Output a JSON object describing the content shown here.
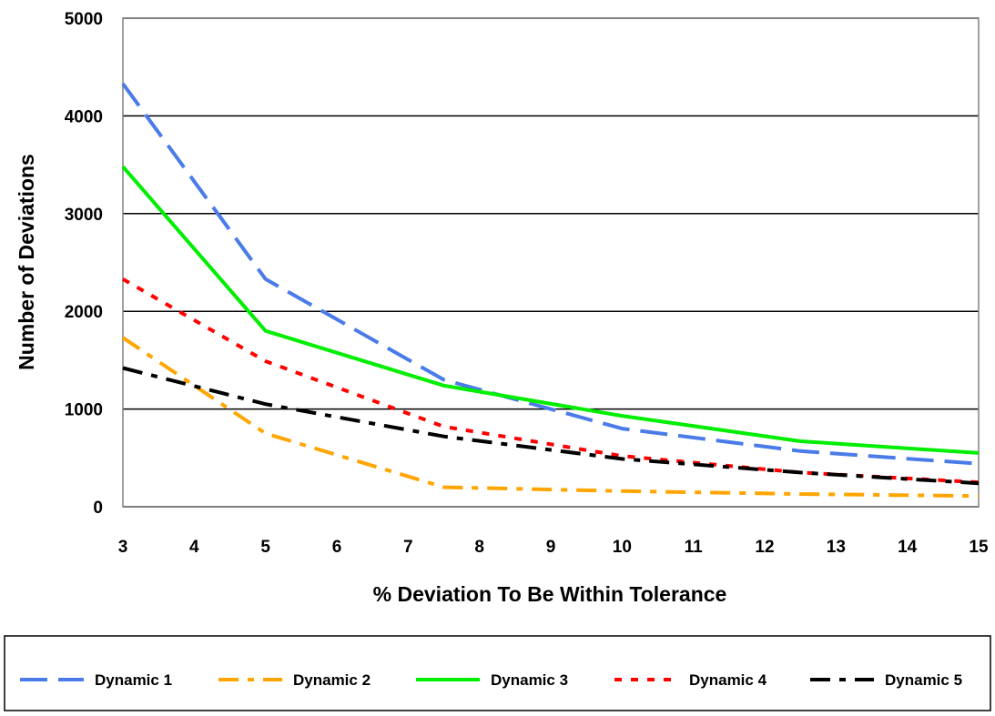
{
  "chart_data": {
    "type": "line",
    "title": "",
    "xlabel": "% Deviation To Be Within Tolerance",
    "ylabel": "Number of Deviations",
    "xlim": [
      3,
      15
    ],
    "ylim": [
      0,
      5000
    ],
    "x_ticks": [
      "3",
      "4",
      "5",
      "6",
      "7",
      "8",
      "9",
      "10",
      "11",
      "12",
      "13",
      "14",
      "15"
    ],
    "y_ticks": [
      "0",
      "1000",
      "2000",
      "3000",
      "4000",
      "5000"
    ],
    "grid": "horizontal",
    "legend_position": "bottom",
    "x": [
      3,
      5,
      7.5,
      10,
      12.5,
      15
    ],
    "series": [
      {
        "name": "Dynamic 1",
        "values": [
          4330,
          2330,
          1300,
          800,
          570,
          440
        ],
        "color": "#4A7BE8",
        "style": "long-dash"
      },
      {
        "name": "Dynamic 2",
        "values": [
          1730,
          750,
          200,
          160,
          130,
          110
        ],
        "color": "#FFA500",
        "style": "dash-dot"
      },
      {
        "name": "Dynamic 3",
        "values": [
          3480,
          1800,
          1240,
          930,
          670,
          550
        ],
        "color": "#00EE00",
        "style": "solid"
      },
      {
        "name": "Dynamic 4",
        "values": [
          2330,
          1490,
          820,
          520,
          350,
          250
        ],
        "color": "#FF0000",
        "style": "dotted"
      },
      {
        "name": "Dynamic 5",
        "values": [
          1420,
          1050,
          720,
          490,
          350,
          240
        ],
        "color": "#000000",
        "style": "dash-dot"
      }
    ]
  }
}
